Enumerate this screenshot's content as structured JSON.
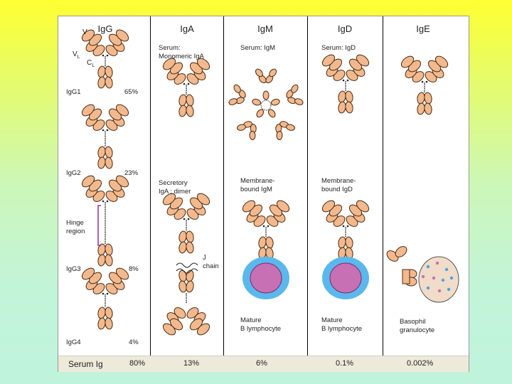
{
  "headers": [
    "IgG",
    "IgA",
    "IgM",
    "IgD",
    "IgE"
  ],
  "igg": {
    "domain_v": "V",
    "domain_vl": "V",
    "domain_vl_sub": "L",
    "domain_cl": "C",
    "domain_cl_sub": "L",
    "subclasses": [
      {
        "name": "IgG1",
        "percent": "65%"
      },
      {
        "name": "IgG2",
        "percent": "23%"
      },
      {
        "name": "IgG3",
        "percent": "8%"
      },
      {
        "name": "IgG4",
        "percent": "4%"
      }
    ],
    "hinge_label_1": "Hinge",
    "hinge_label_2": "region"
  },
  "iga": {
    "serum_1": "Serum:",
    "serum_2": "Monomeric IgA",
    "secretory_1": "Secretory",
    "secretory_2": "IgA ; dimer",
    "jchain_1": "J",
    "jchain_2": "chain"
  },
  "igm": {
    "serum": "Serum: IgM",
    "membrane_1": "Membrane-",
    "membrane_2": "bound IgM",
    "cell_1": "Mature",
    "cell_2": "B lymphocyte"
  },
  "igd": {
    "serum": "Serum: IgD",
    "membrane_1": "Membrane-",
    "membrane_2": "bound IgD",
    "cell_1": "Mature",
    "cell_2": "B lymphocyte"
  },
  "ige": {
    "cell_1": "Basophil",
    "cell_2": "granulocyte"
  },
  "footer": {
    "label": "Serum Ig",
    "values": [
      "80%",
      "13%",
      "6%",
      "0.1%",
      "0.002%"
    ]
  },
  "colors": {
    "fragment": "#f2b98e",
    "cell_membrane": "#5bb8ec",
    "cell_nucleus": "#c870b4",
    "footer_bg": "#eeead9"
  }
}
